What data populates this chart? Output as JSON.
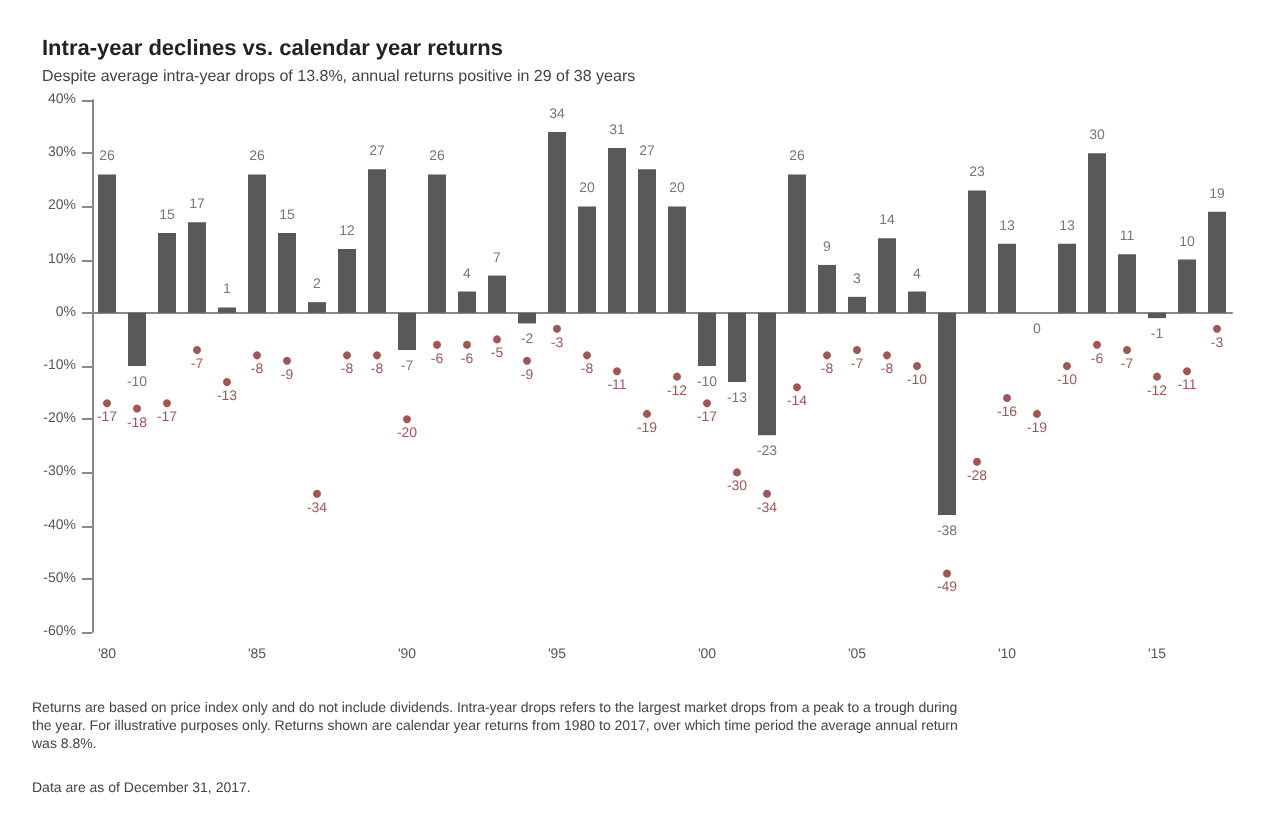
{
  "chart_data": {
    "type": "bar",
    "title": "Intra-year declines vs. calendar year returns",
    "subtitle": "Despite average intra-year drops of 13.8%, annual returns positive in 29 of 38 years",
    "categories": [
      "'80",
      null,
      null,
      null,
      null,
      "'85",
      null,
      null,
      null,
      null,
      "'90",
      null,
      null,
      null,
      null,
      "'95",
      null,
      null,
      null,
      null,
      "'00",
      null,
      null,
      null,
      null,
      "'05",
      null,
      null,
      null,
      null,
      "'10",
      null,
      null,
      null,
      null,
      "'15",
      null,
      null
    ],
    "series": [
      {
        "color": "#595959",
        "values": [
          26,
          -10,
          15,
          17,
          1,
          26,
          15,
          2,
          12,
          27,
          -7,
          26,
          4,
          7,
          -2,
          34,
          20,
          31,
          27,
          20,
          -10,
          -13,
          -23,
          26,
          9,
          3,
          14,
          4,
          -38,
          23,
          13,
          0,
          13,
          30,
          11,
          -1,
          10,
          19
        ]
      },
      {
        "type": "scatter",
        "color": "#8b2a2a",
        "values": [
          -17,
          -18,
          -17,
          -7,
          -13,
          -8,
          -9,
          -34,
          -8,
          -8,
          -20,
          -6,
          -6,
          -5,
          -9,
          -3,
          -8,
          -11,
          -19,
          -12,
          -17,
          -30,
          -34,
          -14,
          -8,
          -7,
          -8,
          -10,
          -49,
          -28,
          -16,
          -19,
          -10,
          -6,
          -7,
          -12,
          -11,
          -3
        ]
      }
    ],
    "ylim": [
      -60,
      40
    ],
    "yticks": [
      {
        "value": -60,
        "label": "-60%"
      },
      {
        "value": -50,
        "label": "-50%"
      },
      {
        "value": -40,
        "label": "-40%"
      },
      {
        "value": -30,
        "label": "-30%"
      },
      {
        "value": -20,
        "label": "-20%"
      },
      {
        "value": -10,
        "label": "-10%"
      },
      {
        "value": 0,
        "label": "0%"
      },
      {
        "value": 10,
        "label": "10%"
      },
      {
        "value": 20,
        "label": "20%"
      },
      {
        "value": 30,
        "label": "30%"
      },
      {
        "value": 40,
        "label": "40%"
      }
    ],
    "data_labels": true,
    "marker": "circle",
    "annotations": [
      "Returns are based on price index only and do not include dividends. Intra-year drops refers to the largest market drops from a peak to a trough during the year. For illustrative purposes only. Returns shown are calendar year returns from 1980 to 2017, over which time period the average annual return was 8.8%.",
      "Data are as of December 31, 2017."
    ]
  }
}
